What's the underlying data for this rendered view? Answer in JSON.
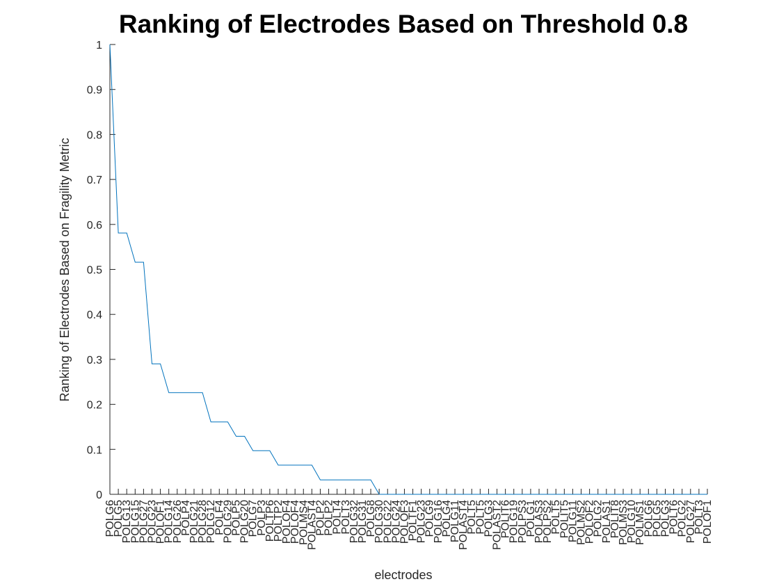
{
  "chart_data": {
    "type": "line",
    "title": "Ranking of Electrodes Based on Threshold 0.8",
    "xlabel": "electrodes",
    "ylabel": "Ranking of Electrodes Based on Fragility Metric",
    "ylim": [
      0,
      1
    ],
    "yticks": [
      "0",
      "0.1",
      "0.2",
      "0.3",
      "0.4",
      "0.5",
      "0.6",
      "0.7",
      "0.8",
      "0.9",
      "1"
    ],
    "grid": false,
    "categories": [
      "POLG6",
      "POLG5",
      "POLG13",
      "POLG15",
      "POLG27",
      "POLG23",
      "POLOF1",
      "POLG14",
      "POLG26",
      "POLP4",
      "POLG21",
      "POLG28",
      "POLG12",
      "POLF4",
      "POLG29",
      "POLP5",
      "POLG20",
      "POLG7",
      "POLP3",
      "POLTP6",
      "POLTP2",
      "POLOF4",
      "POLOF4",
      "POLMS4",
      "POLAST4",
      "POLP2",
      "POLP2",
      "POLT4",
      "POLT3",
      "POLG32",
      "POLG31",
      "POLG8",
      "POLG30",
      "POLG22",
      "POLG24",
      "POLOF3",
      "POLTF1",
      "POLG23",
      "POLG9",
      "POLG16",
      "POLG4",
      "POLG11",
      "POLAST4",
      "POLT5",
      "POLT5",
      "POLG3",
      "POLAST2",
      "POLIT6",
      "POLG19",
      "POLPS3",
      "POLG1",
      "POLAS3",
      "POLPS2",
      "POLT5",
      "POLIT5",
      "POLG11",
      "POLMS2",
      "POLOF2",
      "POLG2",
      "POLAS1",
      "POLIT8",
      "POLMS3",
      "POLG10",
      "POLMS1",
      "POLG6",
      "POLG5",
      "POLG3",
      "POLT6",
      "POLG2",
      "POLG27",
      "POLT3",
      "POLOF1"
    ],
    "series": [
      {
        "values": [
          1,
          0.581,
          0.581,
          0.516,
          0.516,
          0.29,
          0.29,
          0.226,
          0.226,
          0.226,
          0.226,
          0.226,
          0.161,
          0.161,
          0.161,
          0.129,
          0.129,
          0.097,
          0.097,
          0.097,
          0.065,
          0.065,
          0.065,
          0.065,
          0.065,
          0.032,
          0.032,
          0.032,
          0.032,
          0.032,
          0.032,
          0.032,
          0,
          0,
          0,
          0,
          0,
          0,
          0,
          0,
          0,
          0,
          0,
          0,
          0,
          0,
          0,
          0,
          0,
          0,
          0,
          0,
          0,
          0,
          0,
          0,
          0,
          0,
          0,
          0,
          0,
          0,
          0,
          0,
          0,
          0,
          0,
          0,
          0,
          0,
          0,
          0
        ],
        "color": "#0072BD"
      }
    ]
  }
}
